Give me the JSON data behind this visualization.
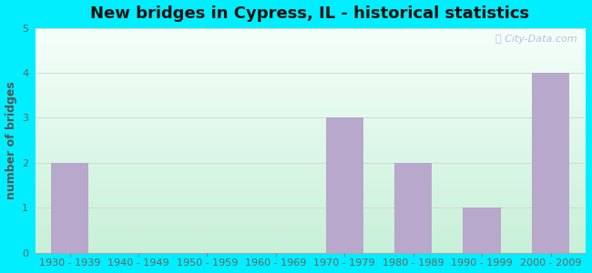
{
  "title": "New bridges in Cypress, IL - historical statistics",
  "categories": [
    "1930 - 1939",
    "1940 - 1949",
    "1950 - 1959",
    "1960 - 1969",
    "1970 - 1979",
    "1980 - 1989",
    "1990 - 1999",
    "2000 - 2009"
  ],
  "values": [
    2,
    0,
    0,
    0,
    3,
    2,
    1,
    4
  ],
  "bar_color": "#b8a8cc",
  "ylabel": "number of bridges",
  "ylim": [
    0,
    5
  ],
  "yticks": [
    0,
    1,
    2,
    3,
    4,
    5
  ],
  "background_outer": "#00eeff",
  "plot_bg_top": "#f5fffa",
  "plot_bg_bottom": "#c8f0d8",
  "title_fontsize": 13,
  "axis_label_fontsize": 9,
  "tick_fontsize": 8,
  "watermark": "City-Data.com",
  "grid_color": "#ccddcc",
  "ylabel_color": "#555555",
  "tick_color": "#666666"
}
